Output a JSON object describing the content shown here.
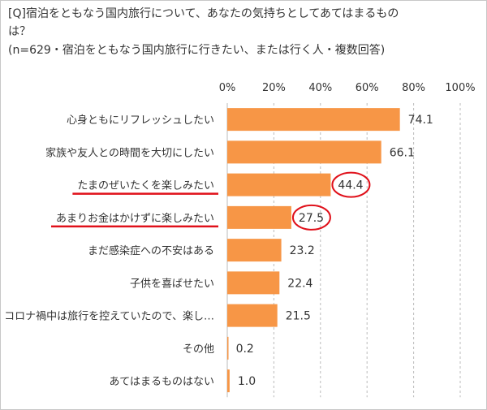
{
  "chart_data": {
    "type": "bar",
    "orientation": "horizontal",
    "title_line1": "[Q]宿泊をともなう国内旅行について、あなたの気持ちとしてあてはまるもの",
    "title_line2": "は？",
    "subtitle": "(n=629・宿泊をともなう国内旅行に行きたい、または行く人・複数回答)",
    "categories": [
      "心身ともにリフレッシュしたい",
      "家族や友人との時間を大切にしたい",
      "たまのぜいたくを楽しみたい",
      "あまりお金はかけずに楽しみたい",
      "まだ感染症への不安はある",
      "子供を喜ばせたい",
      "コロナ禍中は旅行を控えていたので、楽し…",
      "その他",
      "あてはまるものはない"
    ],
    "values": [
      74.1,
      66.1,
      44.4,
      27.5,
      23.2,
      22.4,
      21.5,
      0.2,
      1.0
    ],
    "value_labels": [
      "74.1",
      "66.1",
      "44.4",
      "27.5",
      "23.2",
      "22.4",
      "21.5",
      "0.2",
      "1.0"
    ],
    "xlim": [
      0,
      100
    ],
    "x_ticks": [
      "0%",
      "20%",
      "40%",
      "60%",
      "80%",
      "100%"
    ],
    "grid": true,
    "highlighted": [
      2,
      3
    ],
    "bar_color": "#f79646",
    "highlight_color": "#e0101a"
  }
}
